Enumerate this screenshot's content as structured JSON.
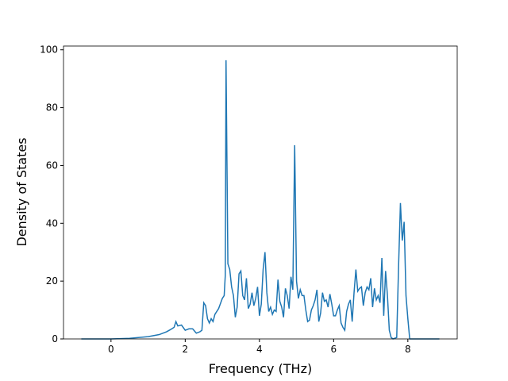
{
  "chart_data": {
    "type": "line",
    "x_label": "Frequency (THz)",
    "y_label": "Density of States",
    "x": [
      -0.8,
      0.0,
      0.5,
      1.0,
      1.3,
      1.5,
      1.6,
      1.7,
      1.75,
      1.8,
      1.9,
      2.0,
      2.1,
      2.2,
      2.3,
      2.4,
      2.45,
      2.5,
      2.55,
      2.6,
      2.65,
      2.7,
      2.75,
      2.8,
      2.9,
      3.0,
      3.05,
      3.08,
      3.1,
      3.15,
      3.2,
      3.25,
      3.3,
      3.35,
      3.4,
      3.45,
      3.5,
      3.55,
      3.6,
      3.65,
      3.7,
      3.75,
      3.8,
      3.85,
      3.9,
      3.95,
      4.0,
      4.05,
      4.1,
      4.15,
      4.2,
      4.25,
      4.3,
      4.35,
      4.4,
      4.45,
      4.5,
      4.55,
      4.6,
      4.65,
      4.7,
      4.75,
      4.8,
      4.85,
      4.9,
      4.95,
      5.0,
      5.05,
      5.1,
      5.15,
      5.2,
      5.25,
      5.3,
      5.35,
      5.4,
      5.45,
      5.5,
      5.55,
      5.6,
      5.65,
      5.7,
      5.75,
      5.8,
      5.85,
      5.9,
      5.95,
      6.0,
      6.05,
      6.1,
      6.15,
      6.2,
      6.25,
      6.3,
      6.35,
      6.4,
      6.45,
      6.5,
      6.55,
      6.6,
      6.65,
      6.7,
      6.75,
      6.8,
      6.85,
      6.9,
      6.95,
      7.0,
      7.05,
      7.1,
      7.15,
      7.2,
      7.25,
      7.3,
      7.35,
      7.4,
      7.45,
      7.5,
      7.55,
      7.6,
      7.7,
      7.75,
      7.8,
      7.85,
      7.9,
      7.95,
      8.0,
      8.05,
      8.85
    ],
    "series": [
      {
        "color": "#1f77b4",
        "values": [
          0,
          0,
          0.2,
          0.8,
          1.5,
          2.5,
          3.2,
          4,
          6,
          4.5,
          4.8,
          3,
          3.5,
          3.5,
          2,
          2.5,
          3,
          12.5,
          11.5,
          7,
          5.5,
          7,
          6,
          8.5,
          10.5,
          14,
          15,
          22,
          96.4,
          26,
          24,
          18,
          15,
          7.5,
          11,
          22.5,
          23.5,
          15,
          13.5,
          21,
          10.5,
          12,
          16,
          11.5,
          14,
          18,
          8,
          12,
          24,
          30,
          16,
          9.5,
          11,
          8.5,
          10,
          9.5,
          20.5,
          13,
          11,
          7.5,
          17.5,
          15,
          10.5,
          21.5,
          17,
          67,
          20,
          14,
          17,
          15,
          15,
          10,
          6,
          6.5,
          10,
          11.5,
          13.5,
          17,
          6,
          9,
          16,
          13,
          13.5,
          11,
          15.5,
          12,
          8,
          8,
          10,
          11.5,
          5.5,
          4,
          3,
          9.5,
          12,
          13.5,
          6,
          16,
          24,
          16.5,
          17.5,
          18,
          11.5,
          16,
          18,
          17,
          21,
          11,
          17.5,
          13.5,
          15,
          12.5,
          28,
          8,
          23.5,
          15,
          3,
          0.5,
          0,
          0.5,
          25,
          47,
          34,
          40.5,
          15,
          7,
          0,
          0
        ]
      }
    ],
    "xlim": [
      -1.28,
      9.33
    ],
    "ylim": [
      0,
      101.3
    ],
    "xticks": [
      0,
      2,
      4,
      6,
      8
    ],
    "yticks": [
      0,
      20,
      40,
      60,
      80,
      100
    ]
  }
}
